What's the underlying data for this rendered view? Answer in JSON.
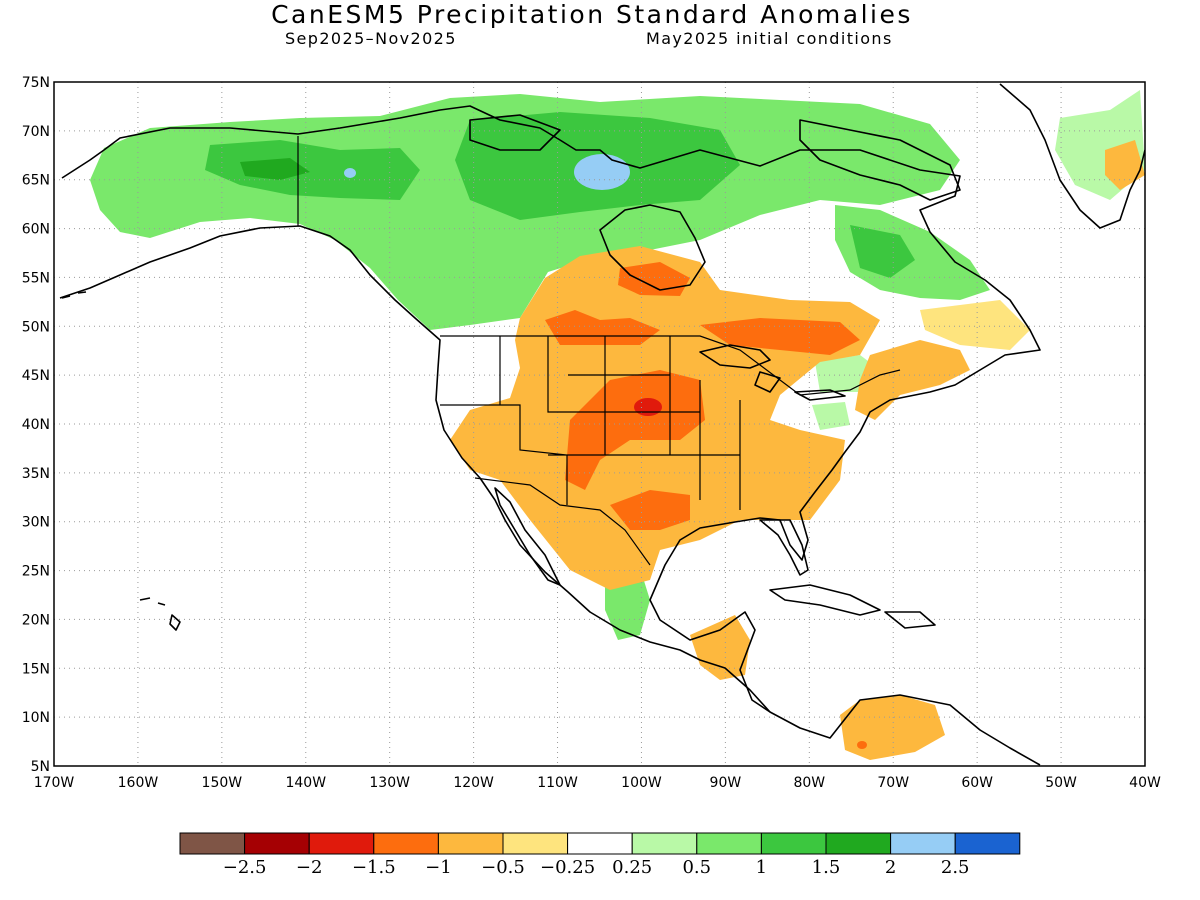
{
  "title": "CanESM5 Precipitation Standard Anomalies",
  "subtitle_left": "Sep2025–Nov2025",
  "subtitle_right": "May2025 initial conditions",
  "lat_labels": [
    "75N",
    "70N",
    "65N",
    "60N",
    "55N",
    "50N",
    "45N",
    "40N",
    "35N",
    "30N",
    "25N",
    "20N",
    "15N",
    "10N",
    "5N"
  ],
  "lon_labels": [
    "170W",
    "160W",
    "150W",
    "140W",
    "130W",
    "120W",
    "110W",
    "100W",
    "90W",
    "80W",
    "70W",
    "60W",
    "50W",
    "40W"
  ],
  "colorbar": {
    "colors": [
      "#7f5546",
      "#a50003",
      "#e01a0c",
      "#fd6d0e",
      "#fdb83e",
      "#fee47e",
      "#ffffff",
      "#b9f9a7",
      "#7ae86b",
      "#3cc73f",
      "#20a91f",
      "#96cdf5",
      "#1a63d1"
    ],
    "labels": [
      "−2.5",
      "−2",
      "−1.5",
      "−1",
      "−0.5",
      "−0.25",
      "0.25",
      "0.5",
      "1",
      "1.5",
      "2",
      "2.5"
    ]
  }
}
